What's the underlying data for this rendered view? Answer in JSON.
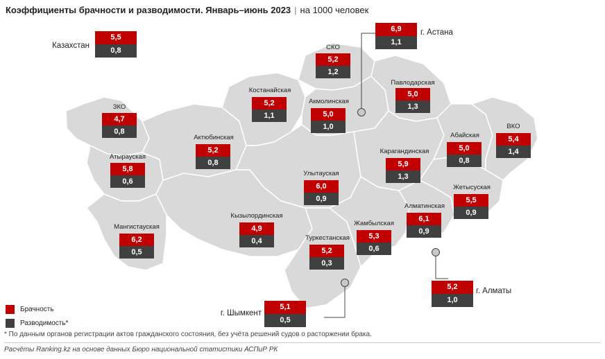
{
  "title": {
    "main": "Коэффициенты брачности и разводимости. Январь–июнь 2023",
    "unit": "на 1000 человек"
  },
  "colors": {
    "marriage": "#c00000",
    "divorce": "#404040",
    "map_fill": "#d9d9d9",
    "map_border": "#ffffff"
  },
  "regions": [
    {
      "name": "Казахстан",
      "marriage": "5,5",
      "divorce": "0,8"
    },
    {
      "name": "г. Астана",
      "marriage": "6,9",
      "divorce": "1,1"
    },
    {
      "name": "СКО",
      "marriage": "5,2",
      "divorce": "1,2"
    },
    {
      "name": "Костанайская",
      "marriage": "5,2",
      "divorce": "1,1"
    },
    {
      "name": "Акмолинская",
      "marriage": "5,0",
      "divorce": "1,0"
    },
    {
      "name": "Павлодарская",
      "marriage": "5,0",
      "divorce": "1,3"
    },
    {
      "name": "ЗКО",
      "marriage": "4,7",
      "divorce": "0,8"
    },
    {
      "name": "Актюбинская",
      "marriage": "5,2",
      "divorce": "0,8"
    },
    {
      "name": "Абайская",
      "marriage": "5,0",
      "divorce": "0,8"
    },
    {
      "name": "ВКО",
      "marriage": "5,4",
      "divorce": "1,4"
    },
    {
      "name": "Атырауская",
      "marriage": "5,8",
      "divorce": "0,6"
    },
    {
      "name": "Карагандинская",
      "marriage": "5,9",
      "divorce": "1,3"
    },
    {
      "name": "Улытауская",
      "marriage": "6,0",
      "divorce": "0,9"
    },
    {
      "name": "Жетысуская",
      "marriage": "5,5",
      "divorce": "0,9"
    },
    {
      "name": "Алматинская",
      "marriage": "6,1",
      "divorce": "0,9"
    },
    {
      "name": "Мангистауская",
      "marriage": "6,2",
      "divorce": "0,5"
    },
    {
      "name": "Кызылординская",
      "marriage": "4,9",
      "divorce": "0,4"
    },
    {
      "name": "Жамбылская",
      "marriage": "5,3",
      "divorce": "0,6"
    },
    {
      "name": "Туркестанская",
      "marriage": "5,2",
      "divorce": "0,3"
    },
    {
      "name": "г. Алматы",
      "marriage": "5,2",
      "divorce": "1,0"
    },
    {
      "name": "г. Шымкент",
      "marriage": "5,1",
      "divorce": "0,5"
    }
  ],
  "legend": {
    "marriage": "Брачность",
    "divorce": "Разводимость*"
  },
  "footnote": "* По данным органов регистрации актов гражданского состояния, без учёта решений судов о расторжении брака.",
  "source": "Расчёты Ranking.kz на основе данных Бюро национальной статистики АСПиР РК"
}
